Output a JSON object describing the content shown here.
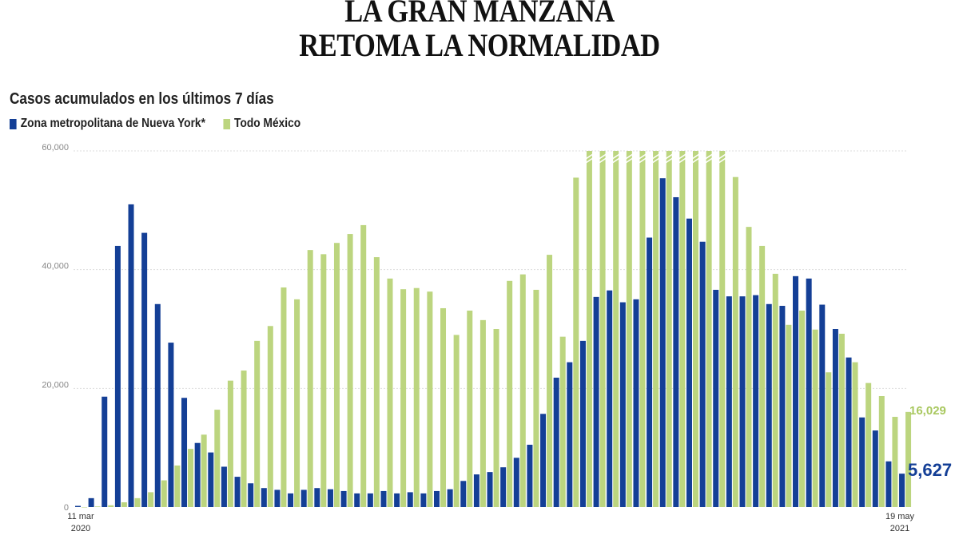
{
  "header": {
    "title_line1": "LA GRAN MANZANA",
    "title_line2": "RETOMA LA NORMALIDAD"
  },
  "chart_data": {
    "type": "bar",
    "title": "Casos acumulados en los últimos 7 días",
    "xlabel": "",
    "ylabel": "",
    "ylim": [
      0,
      60000
    ],
    "yticks": [
      "0",
      "20,000",
      "40,000",
      "60,000"
    ],
    "ytick_values": [
      0,
      20000,
      40000,
      60000
    ],
    "grid": true,
    "legend_position": "top-left",
    "x_start_label": [
      "11 mar",
      "2020"
    ],
    "x_end_label": [
      "19 may",
      "2021"
    ],
    "n_weeks": 63,
    "series": [
      {
        "name": "Zona metropolitana de Nueva York*",
        "color": "#143f96",
        "values": [
          200,
          1500,
          18600,
          44000,
          51000,
          46200,
          34200,
          27700,
          18400,
          10800,
          9200,
          6800,
          5100,
          4000,
          3200,
          2900,
          2300,
          2900,
          3200,
          3000,
          2700,
          2300,
          2300,
          2700,
          2300,
          2500,
          2300,
          2700,
          3000,
          4400,
          5500,
          5900,
          6700,
          8300,
          10500,
          15700,
          21800,
          24400,
          28000,
          35400,
          36500,
          34500,
          35000,
          45400,
          55400,
          52200,
          48600,
          44700,
          36600,
          35500,
          35500,
          35700,
          34200,
          33900,
          38900,
          38500,
          34100,
          30000,
          25200,
          15100,
          12900,
          7700,
          5627
        ],
        "end_label": "5,627"
      },
      {
        "name": "Todo México",
        "color": "#bcd57f",
        "values": [
          0,
          100,
          300,
          800,
          1500,
          2500,
          4500,
          7000,
          9800,
          12200,
          16400,
          21300,
          23000,
          28000,
          30500,
          37000,
          35000,
          43300,
          42600,
          44500,
          46000,
          47500,
          42100,
          38500,
          36700,
          36900,
          36300,
          33500,
          29000,
          33100,
          31500,
          30000,
          38100,
          39200,
          36600,
          42500,
          28700,
          55500,
          60000,
          60000,
          60000,
          60000,
          60000,
          60000,
          60000,
          60000,
          60000,
          60000,
          60000,
          55600,
          47200,
          44000,
          39300,
          30700,
          33100,
          29900,
          22700,
          29200,
          24400,
          20900,
          18700,
          15200,
          16029
        ],
        "clipped_above_ylim": [
          38,
          39,
          40,
          41,
          42,
          43,
          44,
          45,
          46,
          47,
          48
        ],
        "end_label": "16,029"
      }
    ]
  }
}
